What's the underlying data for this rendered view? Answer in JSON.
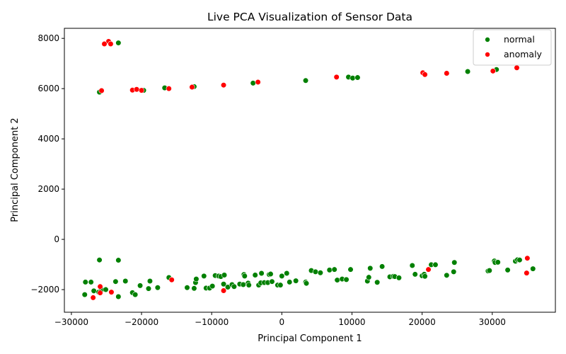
{
  "chart_data": {
    "type": "scatter",
    "title": "Live PCA Visualization of Sensor Data",
    "xlabel": "Principal Component 1",
    "ylabel": "Principal Component 2",
    "xlim": [
      -31000,
      39000
    ],
    "ylim": [
      -2900,
      8400
    ],
    "xticks": [
      -30000,
      -20000,
      -10000,
      0,
      10000,
      20000,
      30000
    ],
    "yticks": [
      -2000,
      0,
      2000,
      4000,
      6000,
      8000
    ],
    "xtick_labels": [
      "−30000",
      "−20000",
      "−10000",
      "0",
      "10000",
      "20000",
      "30000"
    ],
    "ytick_labels": [
      "−2000",
      "0",
      "2000",
      "4000",
      "6000",
      "8000"
    ],
    "grid": false,
    "legend_position": "top-right",
    "series": [
      {
        "name": "normal",
        "color": "#008000",
        "points": [
          [
            -23300,
            7820
          ],
          [
            -26000,
            5860
          ],
          [
            -19700,
            5930
          ],
          [
            -16700,
            6030
          ],
          [
            -12500,
            6080
          ],
          [
            -4100,
            6220
          ],
          [
            3400,
            6320
          ],
          [
            9500,
            6460
          ],
          [
            10100,
            6420
          ],
          [
            10800,
            6440
          ],
          [
            26500,
            6680
          ],
          [
            30600,
            6760
          ],
          [
            -28100,
            -2200
          ],
          [
            -28000,
            -1700
          ],
          [
            -27200,
            -1700
          ],
          [
            -26800,
            -2050
          ],
          [
            -26100,
            -2100
          ],
          [
            -25700,
            -2000
          ],
          [
            -25100,
            -2000
          ],
          [
            -23700,
            -1680
          ],
          [
            -23300,
            -2280
          ],
          [
            -22300,
            -1660
          ],
          [
            -21300,
            -2120
          ],
          [
            -20900,
            -2200
          ],
          [
            -20200,
            -1840
          ],
          [
            -19000,
            -1960
          ],
          [
            -18800,
            -1660
          ],
          [
            -17700,
            -1920
          ],
          [
            -16100,
            -1520
          ],
          [
            -13500,
            -1920
          ],
          [
            -12500,
            -1950
          ],
          [
            -12300,
            -1720
          ],
          [
            -12200,
            -1580
          ],
          [
            -11100,
            -1460
          ],
          [
            -10800,
            -1940
          ],
          [
            -10300,
            -1940
          ],
          [
            -9900,
            -1860
          ],
          [
            -9500,
            -1440
          ],
          [
            -9000,
            -1460
          ],
          [
            -8700,
            -1480
          ],
          [
            -8200,
            -1420
          ],
          [
            -8300,
            -1780
          ],
          [
            -7700,
            -1900
          ],
          [
            -7100,
            -1800
          ],
          [
            -6800,
            -1880
          ],
          [
            -6000,
            -1780
          ],
          [
            -5500,
            -1800
          ],
          [
            -5400,
            -1400
          ],
          [
            -5300,
            -1460
          ],
          [
            -4800,
            -1740
          ],
          [
            -4700,
            -1820
          ],
          [
            -3800,
            -1420
          ],
          [
            -3300,
            -1820
          ],
          [
            -3000,
            -1730
          ],
          [
            -2900,
            -1350
          ],
          [
            -2500,
            -1720
          ],
          [
            -2000,
            -1720
          ],
          [
            -1800,
            -1400
          ],
          [
            -1600,
            -1380
          ],
          [
            -1400,
            -1680
          ],
          [
            -600,
            -1820
          ],
          [
            -200,
            -1820
          ],
          [
            0,
            -1460
          ],
          [
            700,
            -1350
          ],
          [
            1100,
            -1700
          ],
          [
            2000,
            -1650
          ],
          [
            3400,
            -1700
          ],
          [
            3500,
            -1750
          ],
          [
            4200,
            -1240
          ],
          [
            4800,
            -1290
          ],
          [
            5500,
            -1330
          ],
          [
            6800,
            -1220
          ],
          [
            7500,
            -1200
          ],
          [
            7900,
            -1620
          ],
          [
            8600,
            -1580
          ],
          [
            9200,
            -1600
          ],
          [
            9800,
            -1200
          ],
          [
            12200,
            -1660
          ],
          [
            12400,
            -1510
          ],
          [
            12600,
            -1150
          ],
          [
            13600,
            -1710
          ],
          [
            14300,
            -1080
          ],
          [
            15400,
            -1490
          ],
          [
            15900,
            -1470
          ],
          [
            16100,
            -1480
          ],
          [
            16700,
            -1530
          ],
          [
            18600,
            -1040
          ],
          [
            19000,
            -1390
          ],
          [
            20000,
            -1450
          ],
          [
            20300,
            -1390
          ],
          [
            20400,
            -1470
          ],
          [
            21300,
            -1010
          ],
          [
            21900,
            -1010
          ],
          [
            23500,
            -1430
          ],
          [
            24500,
            -1290
          ],
          [
            24600,
            -920
          ],
          [
            29400,
            -1260
          ],
          [
            29600,
            -1240
          ],
          [
            30300,
            -860
          ],
          [
            30400,
            -920
          ],
          [
            30800,
            -910
          ],
          [
            32200,
            -1220
          ],
          [
            33300,
            -870
          ],
          [
            33600,
            -810
          ],
          [
            33900,
            -820
          ],
          [
            35800,
            -1170
          ],
          [
            -26000,
            -820
          ],
          [
            -23300,
            -830
          ]
        ]
      },
      {
        "name": "anomaly",
        "color": "#ff0000",
        "points": [
          [
            -24700,
            7880
          ],
          [
            -25300,
            7780
          ],
          [
            -24400,
            7780
          ],
          [
            -25700,
            5920
          ],
          [
            -21300,
            5940
          ],
          [
            -20700,
            5970
          ],
          [
            -20000,
            5930
          ],
          [
            -16100,
            6000
          ],
          [
            -12800,
            6060
          ],
          [
            -8300,
            6140
          ],
          [
            -3400,
            6260
          ],
          [
            7800,
            6460
          ],
          [
            20100,
            6630
          ],
          [
            20400,
            6560
          ],
          [
            23500,
            6610
          ],
          [
            30100,
            6700
          ],
          [
            33500,
            6830
          ],
          [
            -26900,
            -2320
          ],
          [
            -25900,
            -1880
          ],
          [
            -25900,
            -2130
          ],
          [
            -24300,
            -2100
          ],
          [
            -15700,
            -1610
          ],
          [
            -8300,
            -2040
          ],
          [
            20900,
            -1200
          ],
          [
            34900,
            -1340
          ],
          [
            35000,
            -750
          ]
        ]
      }
    ]
  }
}
